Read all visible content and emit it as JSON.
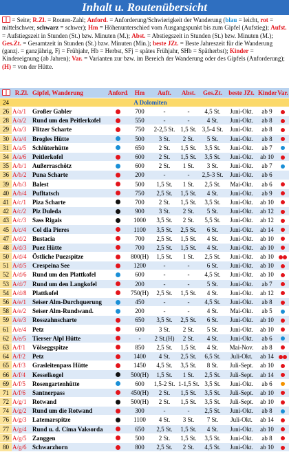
{
  "header": {
    "title": "Inhalt u. Routenübersicht"
  },
  "legend": [
    {
      "text": "= Seite; ",
      "style": "plain"
    },
    {
      "text": "R.Zl.",
      "style": "term"
    },
    {
      "text": " = Routen-Zahl; ",
      "style": "plain"
    },
    {
      "text": "Anford.",
      "style": "term"
    },
    {
      "text": " = Anforderung/Schwierigkeit der Wanderung (",
      "style": "plain"
    },
    {
      "text": "blau",
      "style": "blue"
    },
    {
      "text": " = leicht, ",
      "style": "plain"
    },
    {
      "text": "rot",
      "style": "red"
    },
    {
      "text": " = mittelschwer, ",
      "style": "plain"
    },
    {
      "text": "schwarz",
      "style": "black"
    },
    {
      "text": " = schwer); ",
      "style": "plain"
    },
    {
      "text": "Hm",
      "style": "term"
    },
    {
      "text": " = Höhenunterschied vom Ausgangspunkt bis zum Gipfel (Aufstieg); ",
      "style": "plain"
    },
    {
      "text": "Aufst.",
      "style": "term"
    },
    {
      "text": " = Aufstiegszeit in Stunden (St.) bzw. Minuten (M.); ",
      "style": "plain"
    },
    {
      "text": "Abst.",
      "style": "term"
    },
    {
      "text": " = Abstiegszeit in Stunden (St.) bzw. Minuten (M.); ",
      "style": "plain"
    },
    {
      "text": "Ges.Zt.",
      "style": "term"
    },
    {
      "text": " = Gesamtzeit in Stunden (St.) bzw. Minuten (Min.); ",
      "style": "plain"
    },
    {
      "text": "beste JZt.",
      "style": "term"
    },
    {
      "text": " = Beste Jahreszeit für die Wanderung (ganzj. = ganzjährig, Fj = Frühjahr, Hb = Herbst, SFj = spätes Frühjahr, SHb = Spätherbst); ",
      "style": "plain"
    },
    {
      "text": "Kinder",
      "style": "term"
    },
    {
      "text": " = Kindereignung (ab Jahren); ",
      "style": "plain"
    },
    {
      "text": "Var.",
      "style": "term"
    },
    {
      "text": " = Varianten zur bzw. im Bereich der Wanderung oder des Gipfels (Anforderung); ",
      "style": "plain"
    },
    {
      "text": "(H)",
      "style": "term"
    },
    {
      "text": " = von der Hütte.",
      "style": "plain"
    }
  ],
  "table": {
    "columns": [
      "R.Zl.",
      "Gipfel, Wanderung",
      "Anford.",
      "Hm",
      "Auft.",
      "Abst.",
      "Ges.Zt.",
      "beste JZt.",
      "Kinder",
      "Var."
    ],
    "section": {
      "page": "24",
      "label": "A Dolomiten"
    },
    "rows": [
      {
        "cells": [
          "26",
          "A/a/1",
          "Großer Gabler",
          "700",
          "-",
          "-",
          "4,5 St.",
          "Juni-Okt.",
          "ab 9"
        ],
        "level": "#e3141b",
        "var": [
          "#e3141b"
        ]
      },
      {
        "cells": [
          "28",
          "A/a/2",
          "Rund um den Peitlerkofel",
          "550",
          "-",
          "-",
          "4 St.",
          "Juni-Okt.",
          "ab 8"
        ],
        "level": "#e3141b",
        "var": [
          "#e3141b"
        ]
      },
      {
        "cells": [
          "29",
          "A/a/3",
          "Flitzer Scharte",
          "750",
          "2-2,5 St.",
          "1,5 St.",
          "3,5-4 St.",
          "Juni-Okt.",
          "ab 8"
        ],
        "level": "#e3141b",
        "var": [
          "#e3141b"
        ]
      },
      {
        "cells": [
          "30",
          "A/a/4",
          "Brogles Hütte",
          "500",
          "3 St.",
          "2 St.",
          "5 St.",
          "Juni-Okt.",
          "ab 8"
        ],
        "level": "#1a8fd6",
        "var": [
          "#e3141b"
        ]
      },
      {
        "cells": [
          "31",
          "A/a/5",
          "Schlüterhütte",
          "650",
          "2 St.",
          "1,5 St.",
          "3,5 St.",
          "Juni-Okt.",
          "ab 7"
        ],
        "level": "#1a8fd6",
        "var": [
          "#1a8fd6"
        ]
      },
      {
        "cells": [
          "34",
          "A/a/6",
          "Peitlerkofel",
          "600",
          "2 St.",
          "1,5 St.",
          "3,5 St.",
          "Juni-Okt.",
          "ab 10"
        ],
        "level": "#e3141b",
        "var": [
          "#e3141b"
        ]
      },
      {
        "cells": [
          "35",
          "A/b/1",
          "Außerraschötz",
          "600",
          "2 St.",
          "1 St.",
          "3 St.",
          "Juni-Okt.",
          "ab 7"
        ],
        "level": "#1a8fd6",
        "var": [
          "#1a8fd6"
        ]
      },
      {
        "cells": [
          "36",
          "A/b/2",
          "Puna Scharte",
          "200",
          "-",
          "-",
          "2,5-3 St.",
          "Juni-Okt.",
          "ab 6"
        ],
        "level": "#e3141b",
        "var": []
      },
      {
        "cells": [
          "39",
          "A/b/3",
          "Balest",
          "500",
          "1,5 St.",
          "1 St.",
          "2,5 St.",
          "Mai-Okt.",
          "ab 6"
        ],
        "level": "#e3141b",
        "var": [
          "#e3141b"
        ]
      },
      {
        "cells": [
          "40",
          "A/b/4",
          "Pufltatsch",
          "750",
          "2,5 St.",
          "1,5 St.",
          "4 St.",
          "Juni-Okt.",
          "ab 9"
        ],
        "level": "#e3141b",
        "var": [
          "#e3141b"
        ]
      },
      {
        "cells": [
          "41",
          "A/c/1",
          "Piza Scharte",
          "700",
          "2 St.",
          "1,5 St.",
          "3,5 St.",
          "Juni-Okt.",
          "ab 10"
        ],
        "level": "#111111",
        "var": [
          "#e3141b"
        ]
      },
      {
        "cells": [
          "42",
          "A/c/2",
          "Piz Duleda",
          "900",
          "3 St.",
          "2 St.",
          "5 St.",
          "Juni-Okt.",
          "ab 12"
        ],
        "level": "#111111",
        "var": [
          "#e3141b"
        ]
      },
      {
        "cells": [
          "43",
          "A/c/3",
          "Sass Rigais",
          "1000",
          "3,5 St.",
          "2 St.",
          "5,5 St.",
          "Juni-Okt.",
          "ab 12"
        ],
        "level": "#111111",
        "var": [
          "#e3141b"
        ]
      },
      {
        "cells": [
          "45",
          "A/c/4",
          "Col dla Pieres",
          "1100",
          "3,5 St.",
          "2,5 St.",
          "6 St.",
          "Juni-Okt.",
          "ab 14"
        ],
        "level": "#e3141b",
        "var": [
          "#e3141b"
        ]
      },
      {
        "cells": [
          "47",
          "A/d/2",
          "Bustacia",
          "700",
          "2,5 St.",
          "1,5 St.",
          "4 St.",
          "Juni-Okt.",
          "ab 10"
        ],
        "level": "#e3141b",
        "var": [
          "#e3141b"
        ]
      },
      {
        "cells": [
          "48",
          "A/d/3",
          "Puez Hütte",
          "700",
          "2,5 St.",
          "1,5 St.",
          "4 St.",
          "Juni-Okt.",
          "ab 10"
        ],
        "level": "#e3141b",
        "var": [
          "#e3141b"
        ]
      },
      {
        "cells": [
          "50",
          "A/d/4",
          "Östliche Puezspitze",
          "800(H)",
          "1,5 St.",
          "1 St.",
          "2,5 St.",
          "Juni-Okt.",
          "ab 10"
        ],
        "level": "#e3141b",
        "var": [
          "#e3141b",
          "#e3141b"
        ]
      },
      {
        "cells": [
          "51",
          "A/d/5",
          "Crespeina See",
          "1200",
          "-",
          "-",
          "6 St.",
          "Juni-Okt.",
          "ab 10"
        ],
        "level": "#e3141b",
        "var": [
          "#e3141b"
        ]
      },
      {
        "cells": [
          "52",
          "A/d/6",
          "Rund um den Plattkofel",
          "600",
          "-",
          "-",
          "4,5 St.",
          "Juni-Okt.",
          "ab 10"
        ],
        "level": "#1a8fd6",
        "var": [
          "#e3141b"
        ]
      },
      {
        "cells": [
          "53",
          "A/d/7",
          "Rund um den Langkofel",
          "200",
          "-",
          "-",
          "5 St.",
          "Juni-Okt.",
          "ab 7"
        ],
        "level": "#e3141b",
        "var": [
          "#e3141b"
        ]
      },
      {
        "cells": [
          "54",
          "A/d/8",
          "Plattkofel",
          "750(H)",
          "2,5 St.",
          "1,5 St.",
          "4 St.",
          "Juni-Okt.",
          "ab 12"
        ],
        "level": "#e3141b",
        "var": [
          "#e3141b"
        ]
      },
      {
        "cells": [
          "56",
          "A/e/1",
          "Seiser Alm-Durchquerung",
          "450",
          "-",
          "-",
          "4,5 St.",
          "Juni-Okt.",
          "ab 8"
        ],
        "level": "#1a8fd6",
        "var": [
          "#e3141b"
        ]
      },
      {
        "cells": [
          "58",
          "A/e/2",
          "Seiser Alm-Rundwand.",
          "200",
          "-",
          "-",
          "4 St.",
          "Mai-Okt.",
          "ab 5"
        ],
        "level": "#1a8fd6",
        "var": [
          "#1a8fd6"
        ]
      },
      {
        "cells": [
          "59",
          "A/e/3",
          "Rosszahnscharte",
          "650",
          "3,5 St.",
          "2,5 St.",
          "6 St.",
          "Juni-Okt.",
          "ab 10"
        ],
        "level": "#e3141b",
        "var": [
          "#e3141b"
        ]
      },
      {
        "cells": [
          "61",
          "A/e/4",
          "Petz",
          "600",
          "3 St.",
          "2 St.",
          "5 St.",
          "Juni-Okt.",
          "ab 10"
        ],
        "level": "#e3141b",
        "var": [
          "#e3141b"
        ]
      },
      {
        "cells": [
          "62",
          "A/e/5",
          "Tierser Alpl Hütte",
          "-",
          "2 St.(H)",
          "2 St.",
          "4 St.",
          "Juni-Okt.",
          "ab 6"
        ],
        "level": "#e3141b",
        "var": [
          "#1a8fd6"
        ]
      },
      {
        "cells": [
          "63",
          "A/f/1",
          "Völseggspitze",
          "850",
          "2,5 St.",
          "1,5 St.",
          "4 St.",
          "Mai-Nov.",
          "ab 8"
        ],
        "level": "#e3141b",
        "var": [
          "#e3141b"
        ]
      },
      {
        "cells": [
          "64",
          "A/f/2",
          "Petz",
          "1400",
          "4 St.",
          "2,5 St.",
          "6,5 St.",
          "Juli-Okt.",
          "ab 14"
        ],
        "level": "#e3141b",
        "var": [
          "#e3141b",
          "#e3141b"
        ]
      },
      {
        "cells": [
          "65",
          "A/f/3",
          "Grasleitenpass Hütte",
          "1450",
          "4,5 St.",
          "3,5 St.",
          "8 St.",
          "Juli-Sept.",
          "ab 10"
        ],
        "level": "#e3141b",
        "var": [
          "#e3141b"
        ]
      },
      {
        "cells": [
          "66",
          "A/f/4",
          "Kesselkogel",
          "500(H)",
          "1,5 St.",
          "1 St.",
          "2,5 St.",
          "Juli-Sept.",
          "ab 14"
        ],
        "level": "#111111",
        "var": [
          "#e3141b"
        ]
      },
      {
        "cells": [
          "69",
          "A/f/5",
          "Rosengartenhütte",
          "600",
          "1,5-2 St.",
          "1-1,5 St.",
          "3,5 St.",
          "Juni-Okt.",
          "ab 6"
        ],
        "level": "#1a8fd6",
        "var": [
          "#f39200"
        ]
      },
      {
        "cells": [
          "71",
          "A/f/6",
          "Santnerpass",
          "450(H)",
          "2 St.",
          "1,5 St.",
          "3,5 St.",
          "Juli-Sept.",
          "ab 10"
        ],
        "level": "#e3141b",
        "var": [
          "#e3141b"
        ]
      },
      {
        "cells": [
          "72",
          "A/g/1",
          "Rotwand",
          "500(H)",
          "2 St.",
          "1,5 St.",
          "3,5 St.",
          "Juli-Sept.",
          "ab 10"
        ],
        "level": "#111111",
        "var": [
          "#e3141b"
        ]
      },
      {
        "cells": [
          "74",
          "A/g/2",
          "Rund um die Rotwand",
          "300",
          "-",
          "-",
          "2,5 St.",
          "Juni-Okt.",
          "ab 8"
        ],
        "level": "#e3141b",
        "var": [
          "#1a8fd6"
        ]
      },
      {
        "cells": [
          "76",
          "A/g/3",
          "Latemarspitze",
          "1100",
          "4 St.",
          "3 St.",
          "7 St.",
          "Juli-Okt.",
          "ab 14"
        ],
        "level": "#111111",
        "var": [
          "#e3141b"
        ]
      },
      {
        "cells": [
          "77",
          "A/g/4",
          "Rund u. d. Cima Vaksorda",
          "650",
          "2,5 St.",
          "1,5 St.",
          "4 St.",
          "Juni-Okt.",
          "ab 10"
        ],
        "level": "#e3141b",
        "var": [
          "#e3141b"
        ]
      },
      {
        "cells": [
          "79",
          "A/g/5",
          "Zanggen",
          "500",
          "2 St.",
          "1,5 St.",
          "3,5 St.",
          "Juni-Okt.",
          "ab 8"
        ],
        "level": "#e3141b",
        "var": [
          "#e3141b"
        ]
      },
      {
        "cells": [
          "80",
          "A/g/6",
          "Schwarzhorn",
          "800",
          "2,5 St.",
          "2 St.",
          "4,5 St.",
          "Juni-Okt.",
          "ab 10"
        ],
        "level": "#e3141b",
        "var": [
          "#e3141b"
        ]
      }
    ]
  }
}
